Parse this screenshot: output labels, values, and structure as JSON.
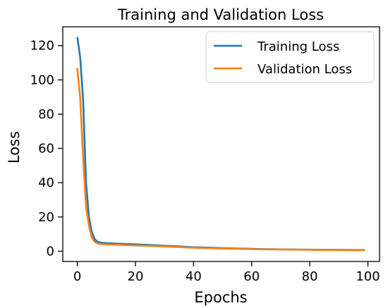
{
  "chart_data": {
    "type": "line",
    "title": "Training and Validation Loss",
    "xlabel": "Epochs",
    "ylabel": "Loss",
    "xlim": [
      -5,
      104
    ],
    "ylim": [
      -6,
      131
    ],
    "xticks": [
      0,
      20,
      40,
      60,
      80,
      100
    ],
    "yticks": [
      0,
      20,
      40,
      60,
      80,
      100,
      120
    ],
    "grid": false,
    "legend_position": "top-right",
    "series": [
      {
        "name": "Training Loss",
        "color": "#1f77b4",
        "x": [
          0,
          1,
          2,
          3,
          4,
          5,
          6,
          7,
          8,
          10,
          15,
          20,
          25,
          30,
          35,
          40,
          45,
          50,
          55,
          60,
          65,
          70,
          75,
          80,
          85,
          90,
          95,
          99
        ],
        "y": [
          125,
          113,
          88,
          40,
          20,
          11,
          7,
          5.5,
          5,
          4.7,
          4.3,
          4,
          3.6,
          3.2,
          2.8,
          2.3,
          2.1,
          1.8,
          1.6,
          1.4,
          1.2,
          1.1,
          1,
          0.9,
          0.8,
          0.8,
          0.7,
          0.7
        ]
      },
      {
        "name": "Validation Loss",
        "color": "#ff7f0e",
        "x": [
          0,
          1,
          2,
          3,
          4,
          5,
          6,
          7,
          8,
          10,
          15,
          20,
          25,
          30,
          35,
          40,
          45,
          50,
          55,
          60,
          65,
          70,
          75,
          80,
          85,
          90,
          95,
          99
        ],
        "y": [
          107,
          89,
          55,
          26,
          15,
          8,
          5.5,
          4.5,
          4.2,
          4,
          3.7,
          3.4,
          3.1,
          2.8,
          2.4,
          2,
          1.8,
          1.6,
          1.4,
          1.2,
          1.1,
          1,
          0.9,
          0.8,
          0.7,
          0.7,
          0.6,
          0.6
        ]
      }
    ]
  }
}
